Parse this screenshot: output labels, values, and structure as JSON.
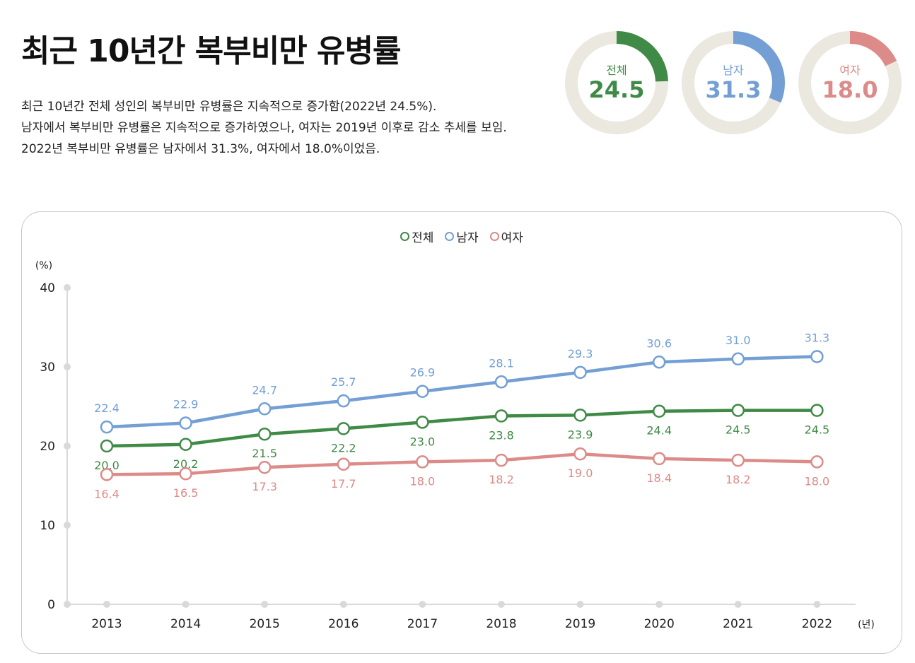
{
  "header": {
    "title": "최근 10년간 복부비만 유병률",
    "description": [
      "최근 10년간 전체 성인의 복부비만 유병률은 지속적으로 증가함(2022년 24.5%).",
      "남자에서 복부비만 유병률은 지속적으로 증가하였으나, 여자는 2019년 이후로 감소 추세를 보임.",
      "2022년 복부비만 유병률은 남자에서 31.3%, 여자에서 18.0%이었음."
    ]
  },
  "summary": {
    "track_color": "#ebe8df",
    "total": {
      "label": "전체",
      "value": "24.5",
      "color": "#3f8a46"
    },
    "male": {
      "label": "남자",
      "value": "31.3",
      "color": "#739fd4"
    },
    "female": {
      "label": "여자",
      "value": "18.0",
      "color": "#dc8b88"
    }
  },
  "chart_data": {
    "type": "line",
    "x": [
      "2013",
      "2014",
      "2015",
      "2016",
      "2017",
      "2018",
      "2019",
      "2020",
      "2021",
      "2022"
    ],
    "ylim": [
      0,
      40
    ],
    "yticks": [
      "0",
      "10",
      "20",
      "30",
      "40"
    ],
    "y_unit": "(%)",
    "x_unit": "(년)",
    "grid": false,
    "legend_position": "top-center",
    "series": [
      {
        "key": "total",
        "name": "전체",
        "color": "#3f8a46",
        "label_position": "below",
        "values": [
          20.0,
          20.2,
          21.5,
          22.2,
          23.0,
          23.8,
          23.9,
          24.4,
          24.5,
          24.5
        ]
      },
      {
        "key": "male",
        "name": "남자",
        "color": "#739fd4",
        "label_position": "above",
        "values": [
          22.4,
          22.9,
          24.7,
          25.7,
          26.9,
          28.1,
          29.3,
          30.6,
          31.0,
          31.3
        ]
      },
      {
        "key": "female",
        "name": "여자",
        "color": "#dc8b88",
        "label_position": "below",
        "values": [
          16.4,
          16.5,
          17.3,
          17.7,
          18.0,
          18.2,
          19.0,
          18.4,
          18.2,
          18.0
        ]
      }
    ]
  }
}
